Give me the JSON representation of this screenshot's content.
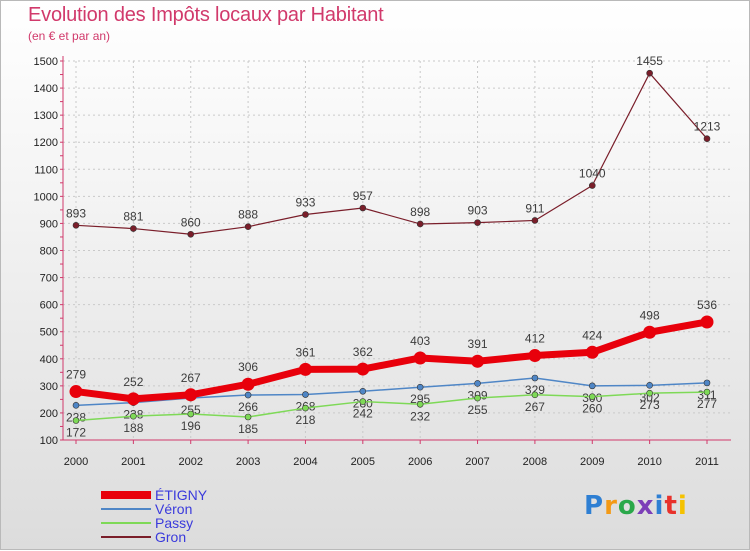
{
  "chart_data": {
    "type": "line",
    "title": "Evolution des Impôts locaux par Habitant",
    "subtitle": "(en € et par an)",
    "categories": [
      "2000",
      "2001",
      "2002",
      "2003",
      "2004",
      "2005",
      "2006",
      "2007",
      "2008",
      "2009",
      "2010",
      "2011"
    ],
    "ylim": [
      100,
      1500
    ],
    "yticks": [
      100,
      200,
      300,
      400,
      500,
      600,
      700,
      800,
      900,
      1000,
      1100,
      1200,
      1300,
      1400,
      1500
    ],
    "grid": true,
    "series": [
      {
        "name": "Gron",
        "color": "#7a1e2a",
        "values": [
          893,
          881,
          860,
          888,
          933,
          957,
          898,
          903,
          911,
          1040,
          1455,
          1213
        ]
      },
      {
        "name": "Véron",
        "color": "#4f86c6",
        "values": [
          228,
          238,
          255,
          266,
          268,
          280,
          295,
          309,
          329,
          300,
          302,
          311
        ]
      },
      {
        "name": "Passy",
        "color": "#7ed957",
        "values": [
          172,
          188,
          196,
          185,
          218,
          242,
          232,
          255,
          267,
          260,
          273,
          277
        ]
      },
      {
        "name": "ÉTIGNY",
        "color": "#e8000b",
        "values": [
          279,
          252,
          267,
          306,
          361,
          362,
          403,
          391,
          412,
          424,
          498,
          536
        ]
      }
    ]
  },
  "legend": [
    "ÉTIGNY",
    "Véron",
    "Passy",
    "Gron"
  ],
  "logo": {
    "text": "Proxiti",
    "colors": [
      "#2e7fd3",
      "#f39a16",
      "#2aa84a",
      "#7c3fb8",
      "#2e7fd3",
      "#e8312b",
      "#f5c200"
    ]
  }
}
